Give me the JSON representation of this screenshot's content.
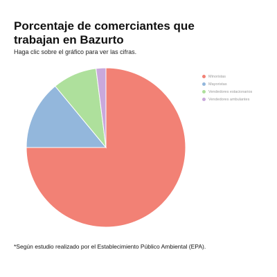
{
  "title": "Porcentaje de comerciantes que trabajan en Bazurto",
  "subtitle": "Haga clic sobre el gráfico para ver las cifras.",
  "footnote": "*Según estudio realizado por el Establecimiento Público Ambiental (EPA).",
  "chart_data": {
    "type": "pie",
    "title": "Porcentaje de comerciantes que trabajan en Bazurto",
    "subtitle": "Haga clic sobre el gráfico para ver las cifras.",
    "legend_position": "right",
    "categories": [
      "Minoristas",
      "Mayoristas",
      "Vendedores estacionarios",
      "Vendedores ambulantes"
    ],
    "values": [
      75,
      14,
      9,
      2
    ],
    "colors": [
      "#f28175",
      "#93b7dc",
      "#aee09c",
      "#c9a8dc"
    ]
  }
}
